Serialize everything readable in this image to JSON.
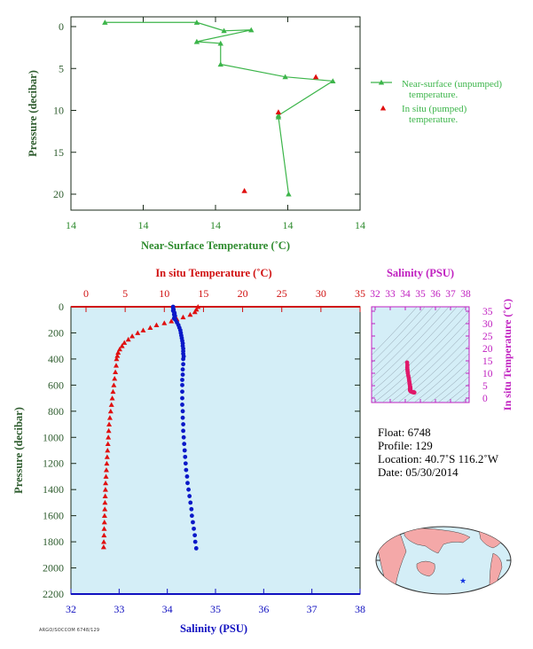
{
  "chart_data": [
    {
      "id": "top",
      "type": "line",
      "xlabel": "Near-Surface Temperature (˚C)",
      "ylabel": "Pressure (decibar)",
      "x_ticks": [
        "14",
        "14",
        "14",
        "14",
        "14"
      ],
      "y_ticks": [
        0,
        5,
        10,
        15,
        20
      ],
      "ylim": [
        0,
        22
      ],
      "xlim": [
        13.6,
        14.45
      ],
      "colors": {
        "axis": "#2e8b2e",
        "series_unpumped": "#3cb54a",
        "series_pumped": "#e01010"
      },
      "series": [
        {
          "name": "Near-surface (unpumped)\ntemperature.",
          "legend_lines": [
            "Near-surface (unpumped)",
            "temperature."
          ],
          "marker": "triangle",
          "line": true,
          "points": [
            [
              13.7,
              -0.5
            ],
            [
              13.97,
              -0.5
            ],
            [
              14.05,
              0.5
            ],
            [
              14.13,
              0.4
            ],
            [
              13.97,
              1.8
            ],
            [
              14.04,
              2.0
            ],
            [
              14.04,
              4.5
            ],
            [
              14.23,
              6.0
            ],
            [
              14.37,
              6.5
            ],
            [
              14.21,
              10.6
            ],
            [
              14.21,
              10.8
            ],
            [
              14.24,
              20.0
            ]
          ]
        },
        {
          "name": "In situ (pumped)\ntemperature.",
          "legend_lines": [
            "In situ (pumped)",
            "temperature."
          ],
          "marker": "triangle",
          "line": false,
          "points": [
            [
              14.32,
              6.0
            ],
            [
              14.21,
              10.2
            ],
            [
              14.11,
              19.6
            ]
          ]
        }
      ]
    },
    {
      "id": "main",
      "type": "scatter",
      "xlabel": "Salinity (PSU)",
      "x2label": "In situ Temperature (˚C)",
      "ylabel": "Pressure (decibar)",
      "salinity_ticks": [
        32,
        33,
        34,
        35,
        36,
        37,
        38
      ],
      "temperature_ticks": [
        0,
        5,
        10,
        15,
        20,
        25,
        30,
        35
      ],
      "pressure_ticks": [
        0,
        200,
        400,
        600,
        800,
        1000,
        1200,
        1400,
        1600,
        1800,
        2000,
        2200
      ],
      "ylim": [
        0,
        2200
      ],
      "xlim_salinity": [
        32,
        38
      ],
      "xlim_temperature": [
        0,
        35
      ],
      "colors": {
        "background": "#d4eef7",
        "salinity": "#0a18c8",
        "temperature": "#e01010",
        "salinity_axis": "#1010c0",
        "temperature_axis": "#d01010",
        "pressure_axis": "#2e5c2e"
      },
      "series": [
        {
          "name": "Temperature",
          "marker": "triangle",
          "points": [
            [
              14.3,
              0
            ],
            [
              14.1,
              20
            ],
            [
              13.9,
              40
            ],
            [
              13.3,
              60
            ],
            [
              12.4,
              80
            ],
            [
              11.6,
              95
            ],
            [
              10.9,
              110
            ],
            [
              10.0,
              125
            ],
            [
              9.0,
              140
            ],
            [
              8.2,
              160
            ],
            [
              7.3,
              180
            ],
            [
              6.6,
              200
            ],
            [
              5.9,
              225
            ],
            [
              5.4,
              250
            ],
            [
              4.9,
              275
            ],
            [
              4.6,
              300
            ],
            [
              4.3,
              325
            ],
            [
              4.1,
              350
            ],
            [
              4.0,
              375
            ],
            [
              3.9,
              400
            ],
            [
              3.85,
              450
            ],
            [
              3.75,
              500
            ],
            [
              3.65,
              550
            ],
            [
              3.55,
              600
            ],
            [
              3.45,
              650
            ],
            [
              3.35,
              700
            ],
            [
              3.25,
              750
            ],
            [
              3.15,
              800
            ],
            [
              3.05,
              850
            ],
            [
              2.95,
              900
            ],
            [
              2.9,
              950
            ],
            [
              2.85,
              1000
            ],
            [
              2.8,
              1050
            ],
            [
              2.75,
              1100
            ],
            [
              2.7,
              1150
            ],
            [
              2.65,
              1200
            ],
            [
              2.6,
              1250
            ],
            [
              2.55,
              1300
            ],
            [
              2.5,
              1350
            ],
            [
              2.48,
              1400
            ],
            [
              2.45,
              1450
            ],
            [
              2.42,
              1500
            ],
            [
              2.4,
              1550
            ],
            [
              2.37,
              1600
            ],
            [
              2.35,
              1650
            ],
            [
              2.32,
              1700
            ],
            [
              2.3,
              1750
            ],
            [
              2.27,
              1800
            ],
            [
              2.25,
              1840
            ]
          ]
        },
        {
          "name": "Salinity",
          "marker": "circle",
          "points": [
            [
              34.12,
              0
            ],
            [
              34.12,
              10
            ],
            [
              34.13,
              20
            ],
            [
              34.12,
              30
            ],
            [
              34.14,
              40
            ],
            [
              34.15,
              50
            ],
            [
              34.14,
              60
            ],
            [
              34.16,
              70
            ],
            [
              34.15,
              80
            ],
            [
              34.14,
              90
            ],
            [
              34.17,
              100
            ],
            [
              34.2,
              120
            ],
            [
              34.23,
              140
            ],
            [
              34.25,
              160
            ],
            [
              34.27,
              180
            ],
            [
              34.28,
              200
            ],
            [
              34.29,
              220
            ],
            [
              34.3,
              240
            ],
            [
              34.31,
              260
            ],
            [
              34.32,
              280
            ],
            [
              34.32,
              300
            ],
            [
              34.33,
              320
            ],
            [
              34.33,
              340
            ],
            [
              34.33,
              360
            ],
            [
              34.34,
              380
            ],
            [
              34.33,
              400
            ],
            [
              34.33,
              440
            ],
            [
              34.32,
              480
            ],
            [
              34.32,
              520
            ],
            [
              34.31,
              560
            ],
            [
              34.31,
              600
            ],
            [
              34.31,
              650
            ],
            [
              34.31,
              700
            ],
            [
              34.31,
              750
            ],
            [
              34.32,
              800
            ],
            [
              34.32,
              850
            ],
            [
              34.33,
              900
            ],
            [
              34.33,
              950
            ],
            [
              34.34,
              1000
            ],
            [
              34.35,
              1050
            ],
            [
              34.36,
              1100
            ],
            [
              34.37,
              1150
            ],
            [
              34.38,
              1200
            ],
            [
              34.39,
              1250
            ],
            [
              34.41,
              1300
            ],
            [
              34.42,
              1350
            ],
            [
              34.44,
              1400
            ],
            [
              34.46,
              1450
            ],
            [
              34.48,
              1500
            ],
            [
              34.5,
              1550
            ],
            [
              34.51,
              1600
            ],
            [
              34.53,
              1650
            ],
            [
              34.55,
              1700
            ],
            [
              34.57,
              1750
            ],
            [
              34.58,
              1800
            ],
            [
              34.6,
              1850
            ]
          ]
        }
      ]
    },
    {
      "id": "ts",
      "type": "scatter",
      "xlabel": "Salinity (PSU)",
      "ylabel": "In situ Temperature (˚C)",
      "x_ticks": [
        32,
        33,
        34,
        35,
        36,
        37,
        38
      ],
      "y_ticks": [
        0,
        5,
        10,
        15,
        20,
        25,
        30,
        35
      ],
      "xlim": [
        32,
        38
      ],
      "ylim": [
        0,
        35
      ],
      "colors": {
        "axis": "#c020c0",
        "points": "#e0186a",
        "contours": "#8a9aa8",
        "background": "#d4eef7"
      },
      "points": [
        [
          34.12,
          14.3
        ],
        [
          34.14,
          13.3
        ],
        [
          34.13,
          12.4
        ],
        [
          34.14,
          11.6
        ],
        [
          34.15,
          10.9
        ],
        [
          34.17,
          10.0
        ],
        [
          34.2,
          9.0
        ],
        [
          34.23,
          8.2
        ],
        [
          34.25,
          7.3
        ],
        [
          34.27,
          6.6
        ],
        [
          34.28,
          5.9
        ],
        [
          34.3,
          5.4
        ],
        [
          34.31,
          4.9
        ],
        [
          34.32,
          4.6
        ],
        [
          34.33,
          4.3
        ],
        [
          34.33,
          4.1
        ],
        [
          34.33,
          4.0
        ],
        [
          34.34,
          3.9
        ],
        [
          34.33,
          3.8
        ],
        [
          34.32,
          3.7
        ],
        [
          34.31,
          3.5
        ],
        [
          34.31,
          3.3
        ],
        [
          34.32,
          3.15
        ],
        [
          34.33,
          3.0
        ],
        [
          34.34,
          2.9
        ],
        [
          34.36,
          2.8
        ],
        [
          34.38,
          2.7
        ],
        [
          34.41,
          2.6
        ],
        [
          34.44,
          2.5
        ],
        [
          34.48,
          2.42
        ],
        [
          34.51,
          2.37
        ],
        [
          34.55,
          2.32
        ],
        [
          34.58,
          2.27
        ],
        [
          34.6,
          2.25
        ]
      ]
    }
  ],
  "info": {
    "float": "Float:  6748",
    "profile": "Profile:  129",
    "location": "Location:  40.7˚S  116.2˚W",
    "date": "Date:  05/30/2014"
  },
  "map": {
    "marker_color": "#1030e0",
    "ocean": "#d4eef7",
    "land": "#f4a8a8"
  },
  "footer_text": "ARGO/SOCCOM 6748/129"
}
